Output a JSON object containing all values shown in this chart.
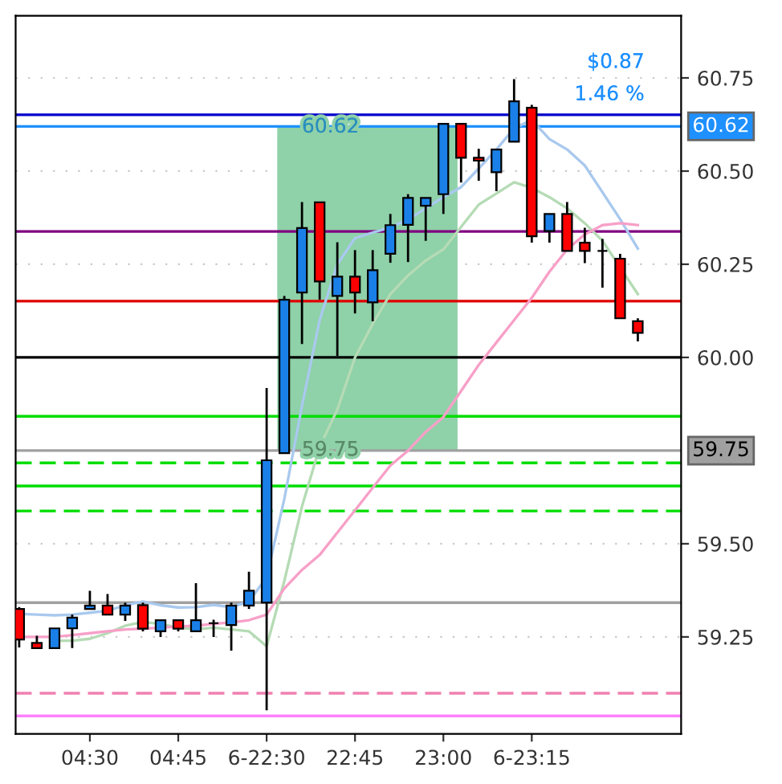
{
  "chart_data": {
    "type": "candlestick",
    "categories": [
      null,
      null,
      null,
      null,
      "04:30",
      null,
      null,
      null,
      null,
      "04:45",
      null,
      null,
      null,
      null,
      "6-22:30",
      null,
      null,
      null,
      null,
      "22:45",
      null,
      null,
      null,
      null,
      "23:00",
      null,
      null,
      null,
      null,
      "6-23:15",
      null,
      null,
      null,
      null,
      null,
      null
    ],
    "ohlc": [
      [
        59.325,
        59.33,
        59.222,
        59.243
      ],
      [
        59.234,
        59.253,
        59.22,
        59.22
      ],
      [
        59.22,
        59.273,
        59.22,
        59.273
      ],
      [
        59.273,
        59.31,
        59.22,
        59.302
      ],
      [
        59.325,
        59.374,
        59.325,
        59.334
      ],
      [
        59.334,
        59.365,
        59.31,
        59.31
      ],
      [
        59.31,
        59.342,
        59.293,
        59.334
      ],
      [
        59.335,
        59.342,
        59.265,
        59.272
      ],
      [
        59.265,
        59.295,
        59.25,
        59.295
      ],
      [
        59.295,
        59.295,
        59.265,
        59.272
      ],
      [
        59.265,
        59.394,
        59.265,
        59.295
      ],
      [
        59.287,
        59.296,
        59.25,
        59.287
      ],
      [
        59.282,
        59.342,
        59.213,
        59.334
      ],
      [
        59.334,
        59.425,
        59.325,
        59.374
      ],
      [
        59.342,
        59.918,
        59.053,
        59.724
      ],
      [
        59.743,
        60.165,
        59.743,
        60.155
      ],
      [
        60.174,
        60.417,
        60.036,
        60.347
      ],
      [
        60.416,
        60.416,
        60.155,
        60.204
      ],
      [
        60.165,
        60.309,
        60.004,
        60.217
      ],
      [
        60.217,
        60.288,
        60.118,
        60.174
      ],
      [
        60.148,
        60.288,
        60.097,
        60.234
      ],
      [
        60.278,
        60.385,
        60.254,
        60.355
      ],
      [
        60.356,
        60.438,
        60.256,
        60.428
      ],
      [
        60.407,
        60.428,
        60.313,
        60.428
      ],
      [
        60.438,
        60.627,
        60.385,
        60.627
      ],
      [
        60.627,
        60.627,
        60.469,
        60.536
      ],
      [
        60.536,
        60.56,
        60.474,
        60.528
      ],
      [
        60.497,
        60.558,
        60.446,
        60.558
      ],
      [
        60.579,
        60.747,
        60.579,
        60.687
      ],
      [
        60.67,
        60.678,
        60.308,
        60.325
      ],
      [
        60.339,
        60.385,
        60.308,
        60.385
      ],
      [
        60.385,
        60.417,
        60.286,
        60.286
      ],
      [
        60.308,
        60.348,
        60.253,
        60.286
      ],
      [
        60.286,
        60.318,
        60.187,
        60.286
      ],
      [
        60.265,
        60.278,
        60.105,
        60.105
      ],
      [
        60.097,
        60.105,
        60.043,
        60.066
      ]
    ],
    "colors": [
      "#ff0000",
      "#ff0000",
      "#1a80e8",
      "#1a80e8",
      "#1a80e8",
      "#ff0000",
      "#1a80e8",
      "#ff0000",
      "#1a80e8",
      "#ff0000",
      "#1a80e8",
      "#000000",
      "#1a80e8",
      "#1a80e8",
      "#1a80e8",
      "#1a80e8",
      "#1a80e8",
      "#ff0000",
      "#1a80e8",
      "#ff0000",
      "#1a80e8",
      "#1a80e8",
      "#1a80e8",
      "#1a80e8",
      "#1a80e8",
      "#ff0000",
      "#ff0000",
      "#1a80e8",
      "#1a80e8",
      "#ff0000",
      "#1a80e8",
      "#ff0000",
      "#ff0000",
      "#000000",
      "#ff0000",
      "#ff0000"
    ],
    "series": [
      {
        "type": "line",
        "color": "#a9c9ee",
        "values": [
          59.312,
          59.31,
          59.308,
          59.31,
          59.315,
          59.32,
          59.335,
          59.345,
          59.335,
          59.329,
          59.33,
          59.336,
          59.33,
          59.345,
          59.41,
          59.62,
          59.87,
          60.1,
          60.25,
          60.32,
          60.335,
          60.349,
          60.37,
          60.4,
          60.43,
          60.457,
          60.507,
          60.558,
          60.615,
          60.637,
          60.586,
          60.558,
          60.515,
          60.443,
          60.371,
          60.292
        ]
      },
      {
        "type": "line",
        "color": "#b5dbb5",
        "values": [
          null,
          null,
          59.24,
          59.24,
          59.245,
          59.26,
          59.28,
          59.29,
          59.285,
          59.275,
          59.27,
          59.275,
          59.27,
          59.265,
          59.225,
          59.4,
          59.6,
          59.76,
          59.86,
          60.0,
          60.09,
          60.17,
          60.22,
          60.26,
          60.29,
          60.35,
          60.41,
          60.44,
          60.47,
          60.455,
          60.43,
          60.4,
          60.36,
          60.313,
          null,
          60.17
        ]
      },
      {
        "type": "line",
        "color": "#f7a0c8",
        "values": [
          59.25,
          59.25,
          59.25,
          59.255,
          59.26,
          59.265,
          59.27,
          59.272,
          59.275,
          59.278,
          59.28,
          59.285,
          59.289,
          59.295,
          59.31,
          59.38,
          59.43,
          59.47,
          59.53,
          59.59,
          59.65,
          59.71,
          59.75,
          59.8,
          59.84,
          59.91,
          59.98,
          60.04,
          60.1,
          60.16,
          60.23,
          60.29,
          60.33,
          60.355,
          60.36,
          60.355
        ]
      }
    ],
    "ylim": [
      58.99,
      60.917
    ],
    "yticks": [
      59.25,
      {
        "value": 59.5,
        "label": "59.50"
      },
      {
        "value": 60.0,
        "label": "60.00"
      },
      60.25,
      {
        "value": 60.5,
        "label": "60.50"
      },
      60.75
    ],
    "grid": "y",
    "ref_lines": [
      {
        "axis": "y",
        "value": 60.651,
        "color": "#0000cc"
      },
      {
        "axis": "y",
        "value": 60.62,
        "color": "#1e90ff",
        "label": "60.62"
      },
      {
        "axis": "y",
        "value": 60.338,
        "color": "#800080"
      },
      {
        "axis": "y",
        "value": 60.151,
        "color": "#e00000"
      },
      {
        "axis": "y",
        "value": 60.0,
        "color": "#000000"
      },
      {
        "axis": "y",
        "value": 59.842,
        "color": "#00dd00"
      },
      {
        "axis": "y",
        "value": 59.75,
        "color": "#a0a0a0",
        "label": "59.75"
      },
      {
        "axis": "y",
        "value": 59.717,
        "color": "#00dd00",
        "line_style": "dashed"
      },
      {
        "axis": "y",
        "value": 59.655,
        "color": "#00dd00"
      },
      {
        "axis": "y",
        "value": 59.588,
        "color": "#00dd00",
        "line_style": "dashed"
      },
      {
        "axis": "y",
        "value": 59.342,
        "color": "#a0a0a0"
      },
      {
        "axis": "y",
        "value": 59.099,
        "color": "#f080b0",
        "line_style": "dashed"
      },
      {
        "axis": "y",
        "value": 59.038,
        "color": "#ff80ff"
      }
    ],
    "annotations": [
      "60.62",
      "59.75",
      "$0.87",
      "1.46 %"
    ]
  }
}
